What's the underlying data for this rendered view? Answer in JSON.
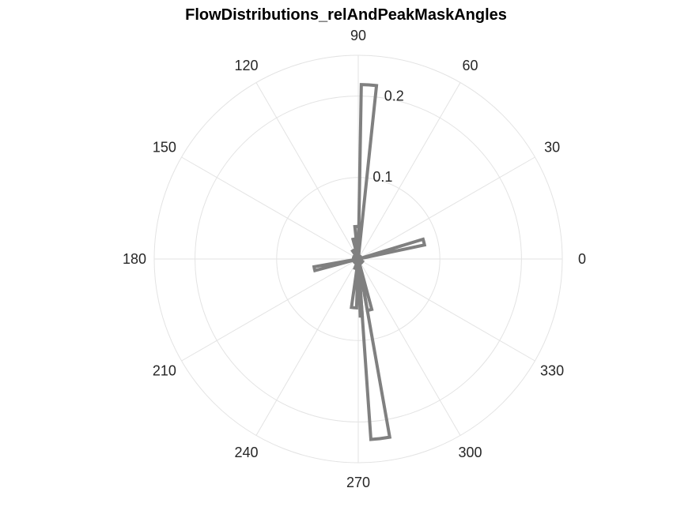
{
  "chart_data": {
    "type": "polar-histogram",
    "title": "FlowDistributions_relAndPeakMaskAngles",
    "theta_ticks": [
      "0",
      "30",
      "60",
      "90",
      "120",
      "150",
      "180",
      "210",
      "240",
      "270",
      "300",
      "330"
    ],
    "theta_tick_degrees": [
      0,
      30,
      60,
      90,
      120,
      150,
      180,
      210,
      240,
      270,
      300,
      330
    ],
    "r_ticks": [
      "0.1",
      "0.2"
    ],
    "r_tick_values": [
      0.1,
      0.2
    ],
    "rlim": [
      0,
      0.25
    ],
    "grid": true,
    "color": "#808080",
    "bins": [
      {
        "start_deg": 84.0,
        "end_deg": 89.0,
        "value": 0.214
      },
      {
        "start_deg": 89.0,
        "end_deg": 96.0,
        "value": 0.04
      },
      {
        "start_deg": 96.0,
        "end_deg": 105.0,
        "value": 0.025
      },
      {
        "start_deg": 105.0,
        "end_deg": 125.0,
        "value": 0.012
      },
      {
        "start_deg": 125.0,
        "end_deg": 170.0,
        "value": 0.006
      },
      {
        "start_deg": 12.0,
        "end_deg": 17.0,
        "value": 0.083
      },
      {
        "start_deg": 17.0,
        "end_deg": 60.0,
        "value": 0.004
      },
      {
        "start_deg": 190.0,
        "end_deg": 195.0,
        "value": 0.055
      },
      {
        "start_deg": 195.0,
        "end_deg": 240.0,
        "value": 0.006
      },
      {
        "start_deg": 250.0,
        "end_deg": 262.0,
        "value": 0.012
      },
      {
        "start_deg": 262.0,
        "end_deg": 268.0,
        "value": 0.06
      },
      {
        "start_deg": 272.0,
        "end_deg": 274.0,
        "value": 0.07
      },
      {
        "start_deg": 274.0,
        "end_deg": 280.0,
        "value": 0.222
      },
      {
        "start_deg": 280.0,
        "end_deg": 285.0,
        "value": 0.064
      },
      {
        "start_deg": 285.0,
        "end_deg": 330.0,
        "value": 0.006
      },
      {
        "start_deg": 330.0,
        "end_deg": 360.0,
        "value": 0.004
      }
    ]
  }
}
